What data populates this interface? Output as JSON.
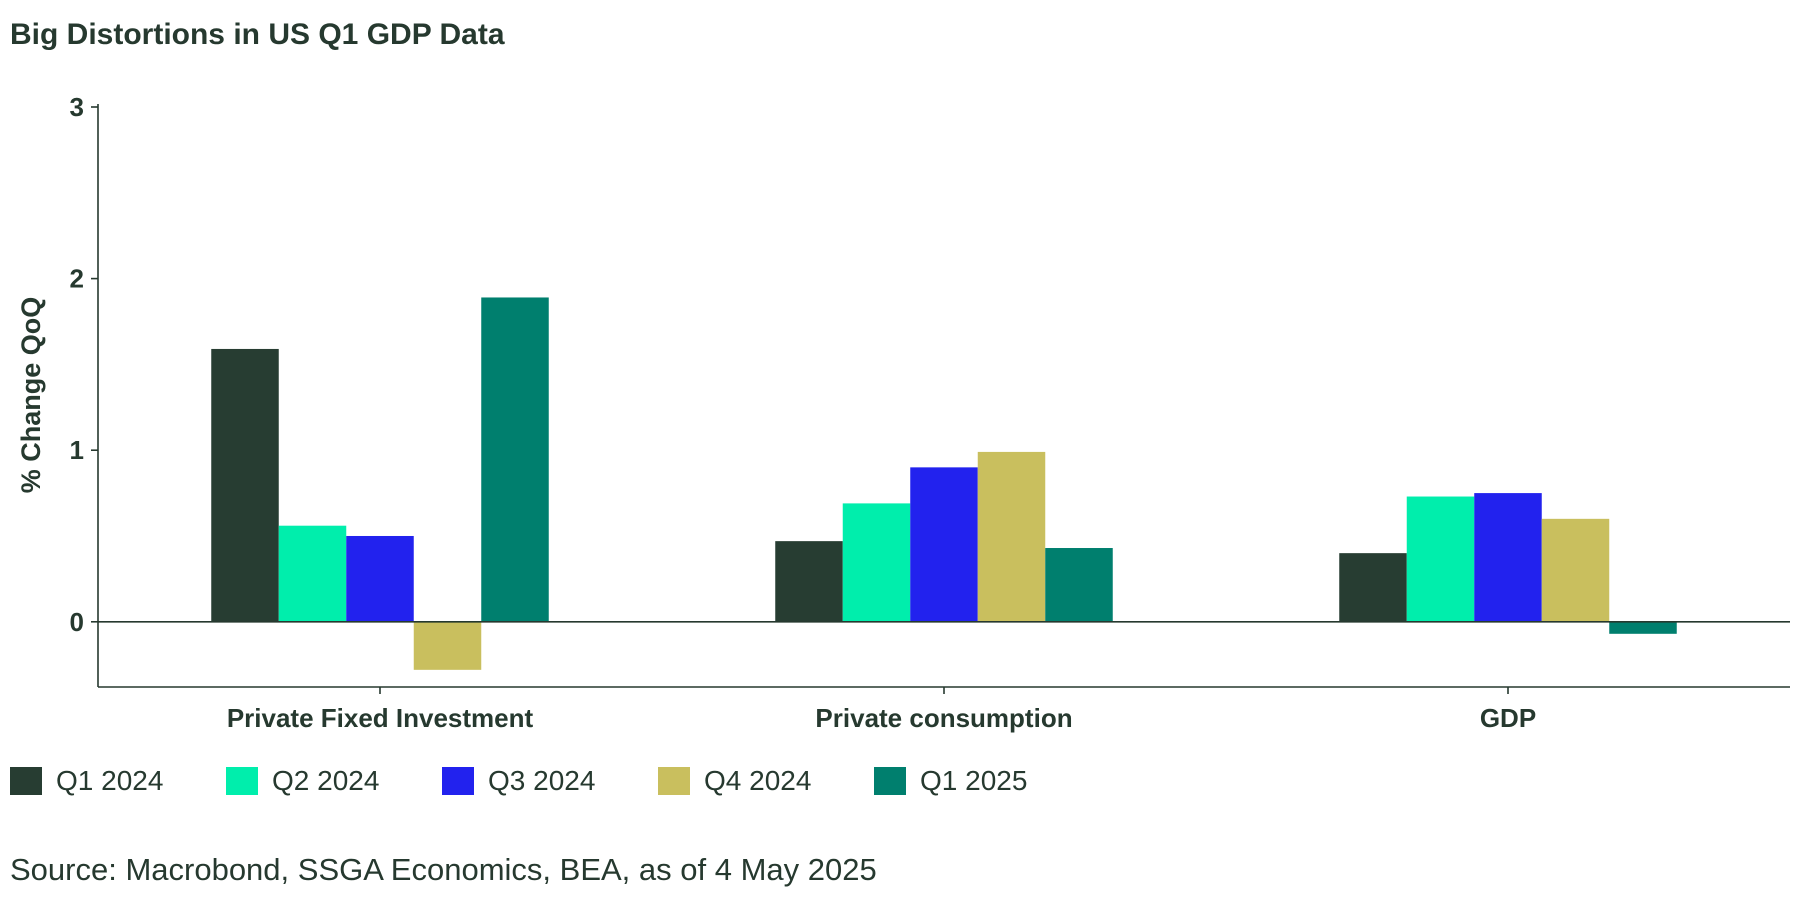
{
  "title": "Big Distortions in US Q1 GDP Data",
  "source": "Source: Macrobond, SSGA Economics, BEA, as of 4 May 2025",
  "chart_data": {
    "type": "bar",
    "title": "Big Distortions in US Q1 GDP Data",
    "ylabel": "% Change QoQ",
    "xlabel": "",
    "ylim": [
      -0.38,
      3
    ],
    "yticks": [
      0,
      1,
      2,
      3
    ],
    "grid": false,
    "legend_position": "bottom-left",
    "categories": [
      "Private Fixed Investment",
      "Private consumption",
      "GDP"
    ],
    "series": [
      {
        "name": "Q1 2024",
        "color": "#273d32",
        "values": [
          1.59,
          0.47,
          0.4
        ]
      },
      {
        "name": "Q2 2024",
        "color": "#00eeac",
        "values": [
          0.56,
          0.69,
          0.73
        ]
      },
      {
        "name": "Q3 2024",
        "color": "#2222ee",
        "values": [
          0.5,
          0.9,
          0.75
        ]
      },
      {
        "name": "Q4 2024",
        "color": "#c9bf5e",
        "values": [
          -0.28,
          0.99,
          0.6
        ]
      },
      {
        "name": "Q1 2025",
        "color": "#007f6e",
        "values": [
          1.89,
          0.43,
          -0.07
        ]
      }
    ]
  }
}
